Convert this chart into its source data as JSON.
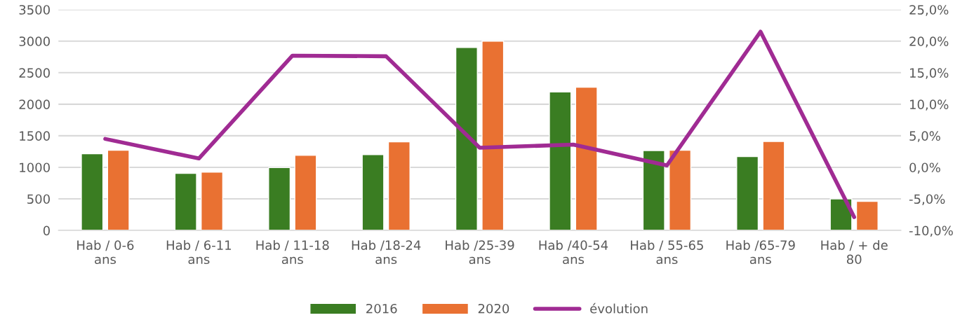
{
  "chart_data": {
    "type": "bar",
    "categories": [
      "Hab / 0-6\nans",
      "Hab / 6-11\nans",
      "Hab / 11-18\nans",
      "Hab /18-24\nans",
      "Hab /25-39\nans",
      "Hab /40-54\nans",
      "Hab / 55-65\nans",
      "Hab /65-79\nans",
      "Hab / + de\n80"
    ],
    "series": [
      {
        "name": "2016",
        "color": "#3a7d22",
        "values": [
          1215,
          905,
          995,
          1200,
          2900,
          2195,
          1265,
          1170,
          500
        ]
      },
      {
        "name": "2020",
        "color": "#e97132",
        "values": [
          1270,
          925,
          1190,
          1405,
          3000,
          2270,
          1270,
          1410,
          460
        ]
      },
      {
        "name": "évolution",
        "type": "line",
        "axis": "y2",
        "color": "#a02b93",
        "values": [
          4.5,
          1.4,
          17.7,
          17.6,
          3.1,
          3.6,
          0.3,
          21.5,
          -7.9
        ]
      }
    ],
    "ylim": [
      0,
      3500
    ],
    "yticks": [
      0,
      500,
      1000,
      1500,
      2000,
      2500,
      3000,
      3500
    ],
    "y2lim": [
      -10,
      25
    ],
    "y2ticks": [
      {
        "value": -10,
        "label": "-10,0%"
      },
      {
        "value": -5,
        "label": "-5,0%"
      },
      {
        "value": 0,
        "label": "0,0%"
      },
      {
        "value": 5,
        "label": "5,0%"
      },
      {
        "value": 10,
        "label": "10,0%"
      },
      {
        "value": 15,
        "label": "15,0%"
      },
      {
        "value": 20,
        "label": "20,0%"
      },
      {
        "value": 25,
        "label": "25,0%"
      }
    ],
    "grid": "y",
    "legend": "bottom",
    "marker": "none",
    "line_style": "solid"
  }
}
